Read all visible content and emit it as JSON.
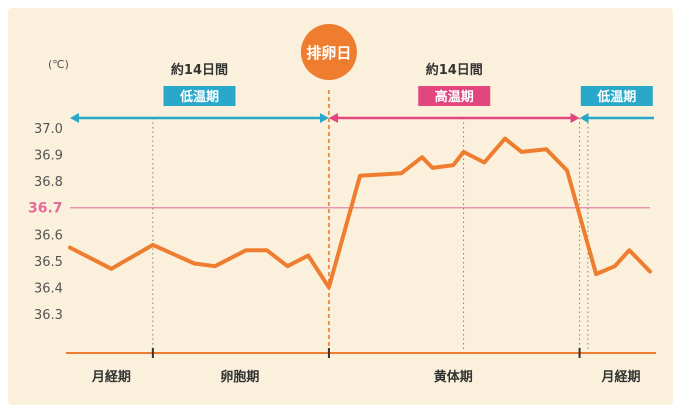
{
  "chart_data": {
    "type": "line",
    "unit": "(℃)",
    "y_ticks": [
      "37.0",
      "36.9",
      "36.8",
      "36.7",
      "36.6",
      "36.5",
      "36.4",
      "36.3"
    ],
    "ylim": [
      36.3,
      37.0
    ],
    "reference_line": {
      "value": 36.7,
      "label": "36.7",
      "color": "#e56b9a"
    },
    "series": [
      {
        "color": "#ee7d2f",
        "points": [
          [
            0,
            36.55
          ],
          [
            2,
            36.47
          ],
          [
            4,
            36.56
          ],
          [
            6,
            36.49
          ],
          [
            7,
            36.48
          ],
          [
            8.5,
            36.54
          ],
          [
            9.5,
            36.54
          ],
          [
            10.5,
            36.48
          ],
          [
            11.5,
            36.52
          ],
          [
            12.5,
            36.4
          ],
          [
            14,
            36.82
          ],
          [
            16,
            36.83
          ],
          [
            17,
            36.89
          ],
          [
            17.5,
            36.85
          ],
          [
            18.5,
            36.86
          ],
          [
            19,
            36.91
          ],
          [
            20,
            36.87
          ],
          [
            21,
            36.96
          ],
          [
            21.8,
            36.91
          ],
          [
            23,
            36.92
          ],
          [
            24,
            36.84
          ],
          [
            25.4,
            36.45
          ],
          [
            26.3,
            36.48
          ],
          [
            27,
            36.54
          ],
          [
            28,
            36.46
          ]
        ]
      }
    ],
    "ovulation_label": "排卵日",
    "phases": [
      {
        "period": "約14日間",
        "label": "低温期",
        "color": "#2aa8c9"
      },
      {
        "period": "約14日間",
        "label": "高温期",
        "color": "#e2467e"
      },
      {
        "period": "",
        "label": "低温期",
        "color": "#2aa8c9"
      }
    ],
    "x_periods": [
      "月経期",
      "卵胞期",
      "黄体期",
      "月経期"
    ],
    "grid": false
  }
}
